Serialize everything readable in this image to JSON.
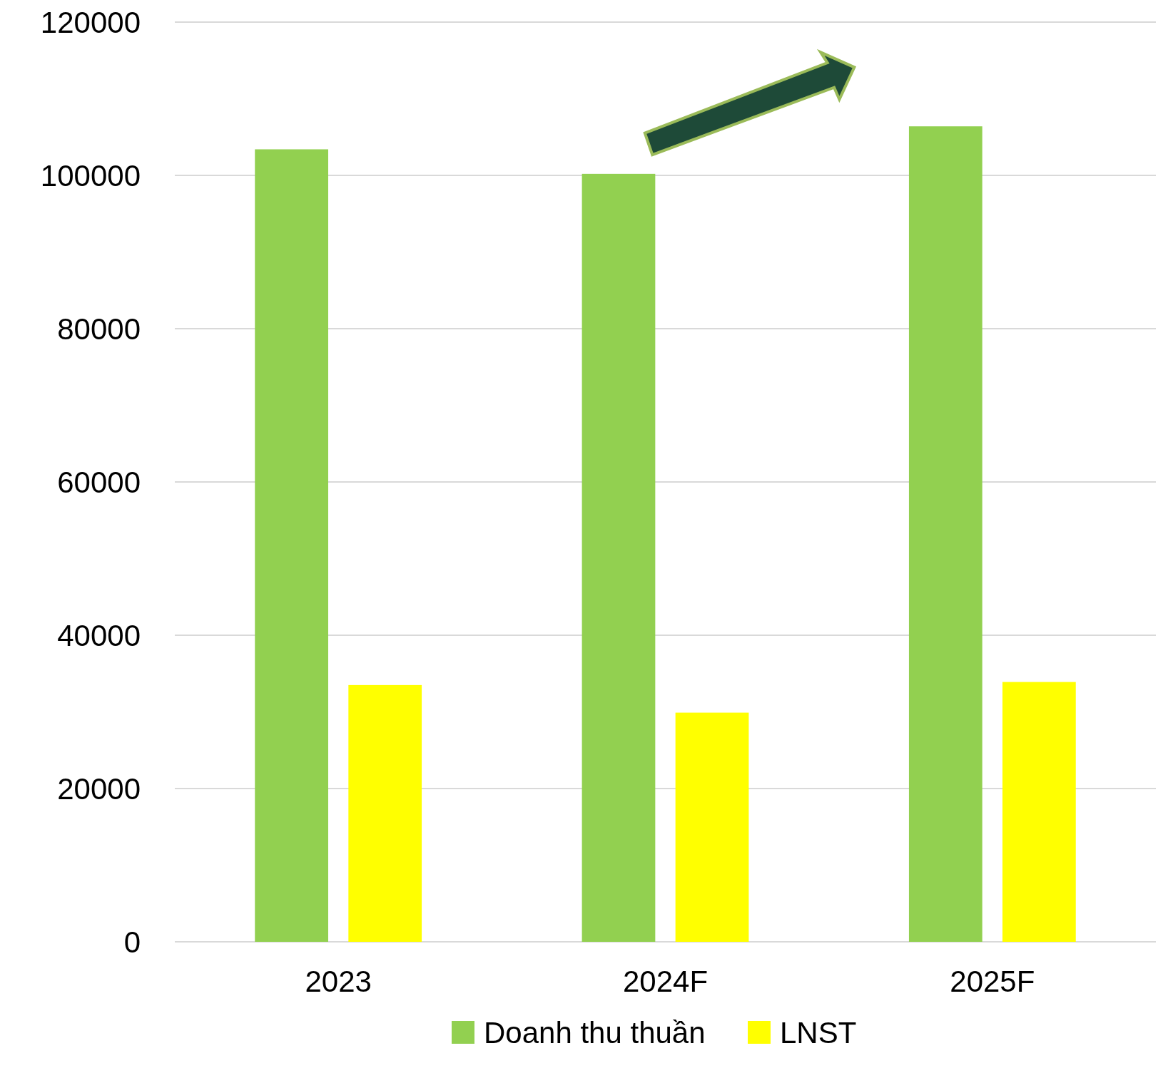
{
  "chart_data": {
    "type": "bar",
    "categories": [
      "2023",
      "2024F",
      "2025F"
    ],
    "series": [
      {
        "name": "Doanh thu thuần",
        "color": "#92d050",
        "values": [
          103400,
          100200,
          106400
        ]
      },
      {
        "name": "LNST",
        "color": "#ffff00",
        "values": [
          33500,
          29900,
          33900
        ]
      }
    ],
    "ylim": [
      0,
      120000
    ],
    "yticks": [
      0,
      20000,
      40000,
      60000,
      80000,
      100000,
      120000
    ],
    "grid": "y",
    "legend": "bottom"
  }
}
